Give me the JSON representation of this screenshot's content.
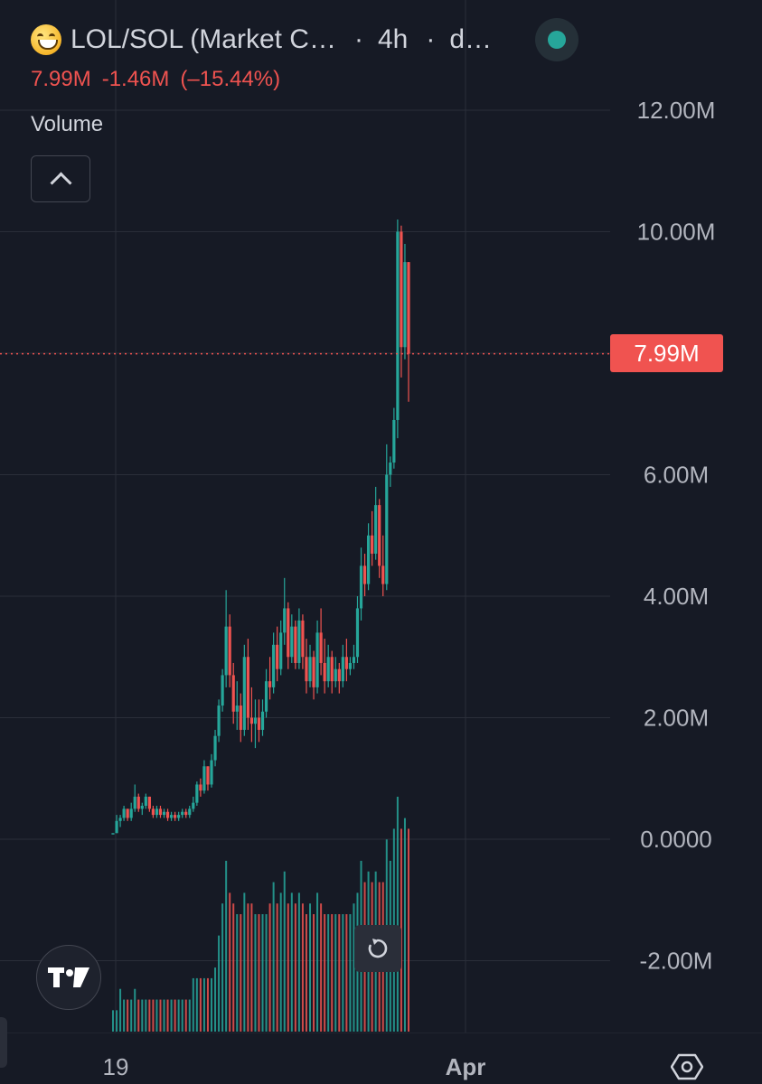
{
  "header": {
    "symbol_title": "LOL/SOL (Market C…",
    "interval": "4h",
    "source_abbrev": "d…",
    "icon": "grinning-face-emoji-icon",
    "status_color": "#26a69a"
  },
  "stats": {
    "last": "7.99M",
    "change": "-1.46M",
    "change_pct": "(–15.44%)",
    "color": "#ef5350"
  },
  "volume_label": "Volume",
  "price_tag": "7.99M",
  "time_axis": {
    "labels": [
      "19",
      "Apr"
    ]
  },
  "colors": {
    "up": "#26a69a",
    "down": "#ef5350",
    "background": "#161a25",
    "grid": "#2a2e39"
  },
  "chart_data": {
    "type": "candlestick",
    "y_axis_labels": [
      "12.00M",
      "10.00M",
      "6.00M",
      "4.00M",
      "2.00M",
      "0.0000",
      "-2.00M"
    ],
    "ylim": [
      -3.2,
      12.0
    ],
    "x_labels": [
      "19",
      "Apr"
    ],
    "last_price": 7.99,
    "candles": [
      [
        0.1,
        0.1,
        0.1,
        0.1
      ],
      [
        0.1,
        0.4,
        0.1,
        0.3
      ],
      [
        0.3,
        0.4,
        0.2,
        0.35
      ],
      [
        0.35,
        0.55,
        0.3,
        0.5
      ],
      [
        0.5,
        0.5,
        0.3,
        0.35
      ],
      [
        0.35,
        0.6,
        0.3,
        0.5
      ],
      [
        0.5,
        0.9,
        0.45,
        0.7
      ],
      [
        0.7,
        0.75,
        0.45,
        0.5
      ],
      [
        0.5,
        0.6,
        0.4,
        0.55
      ],
      [
        0.55,
        0.75,
        0.5,
        0.7
      ],
      [
        0.7,
        0.7,
        0.45,
        0.5
      ],
      [
        0.5,
        0.55,
        0.35,
        0.4
      ],
      [
        0.4,
        0.55,
        0.35,
        0.5
      ],
      [
        0.5,
        0.55,
        0.35,
        0.4
      ],
      [
        0.4,
        0.5,
        0.35,
        0.45
      ],
      [
        0.45,
        0.5,
        0.3,
        0.35
      ],
      [
        0.35,
        0.45,
        0.3,
        0.4
      ],
      [
        0.4,
        0.45,
        0.3,
        0.35
      ],
      [
        0.35,
        0.45,
        0.3,
        0.4
      ],
      [
        0.4,
        0.5,
        0.35,
        0.45
      ],
      [
        0.45,
        0.5,
        0.35,
        0.4
      ],
      [
        0.4,
        0.55,
        0.35,
        0.5
      ],
      [
        0.5,
        0.7,
        0.45,
        0.6
      ],
      [
        0.6,
        0.95,
        0.55,
        0.9
      ],
      [
        0.9,
        1.0,
        0.7,
        0.8
      ],
      [
        0.8,
        1.3,
        0.75,
        1.2
      ],
      [
        1.2,
        1.2,
        0.8,
        0.9
      ],
      [
        0.9,
        1.4,
        0.85,
        1.3
      ],
      [
        1.3,
        1.8,
        1.2,
        1.7
      ],
      [
        1.7,
        2.3,
        1.6,
        2.2
      ],
      [
        2.2,
        2.8,
        2.1,
        2.7
      ],
      [
        2.7,
        4.1,
        2.5,
        3.5
      ],
      [
        3.5,
        3.7,
        2.5,
        2.7
      ],
      [
        2.7,
        2.9,
        1.9,
        2.1
      ],
      [
        2.1,
        2.6,
        1.8,
        2.2
      ],
      [
        2.2,
        2.4,
        1.6,
        1.8
      ],
      [
        1.8,
        3.2,
        1.7,
        3.0
      ],
      [
        3.0,
        3.3,
        1.8,
        2.0
      ],
      [
        2.0,
        2.5,
        1.6,
        1.9
      ],
      [
        1.9,
        2.3,
        1.5,
        2.0
      ],
      [
        2.0,
        2.3,
        1.6,
        1.8
      ],
      [
        1.8,
        2.3,
        1.7,
        2.1
      ],
      [
        2.1,
        2.8,
        2.0,
        2.6
      ],
      [
        2.6,
        3.0,
        2.3,
        2.5
      ],
      [
        2.5,
        3.4,
        2.4,
        3.2
      ],
      [
        3.2,
        3.5,
        2.6,
        2.8
      ],
      [
        2.8,
        3.6,
        2.7,
        3.4
      ],
      [
        3.4,
        4.3,
        3.2,
        3.8
      ],
      [
        3.8,
        3.9,
        2.8,
        3.0
      ],
      [
        3.0,
        3.7,
        2.9,
        3.5
      ],
      [
        3.5,
        3.6,
        2.8,
        2.9
      ],
      [
        2.9,
        3.8,
        2.8,
        3.6
      ],
      [
        3.6,
        3.7,
        2.8,
        3.0
      ],
      [
        3.0,
        3.3,
        2.4,
        2.6
      ],
      [
        2.6,
        3.2,
        2.5,
        3.0
      ],
      [
        3.0,
        3.1,
        2.3,
        2.5
      ],
      [
        2.5,
        3.6,
        2.4,
        3.4
      ],
      [
        3.4,
        3.8,
        2.7,
        2.9
      ],
      [
        2.9,
        3.3,
        2.4,
        2.6
      ],
      [
        2.6,
        3.2,
        2.5,
        3.0
      ],
      [
        3.0,
        3.1,
        2.4,
        2.6
      ],
      [
        2.6,
        3.0,
        2.5,
        2.8
      ],
      [
        2.8,
        2.9,
        2.4,
        2.6
      ],
      [
        2.6,
        3.2,
        2.5,
        3.0
      ],
      [
        3.0,
        3.3,
        2.6,
        2.8
      ],
      [
        2.8,
        3.0,
        2.7,
        2.9
      ],
      [
        2.9,
        3.2,
        2.8,
        3.0
      ],
      [
        3.0,
        4.0,
        2.9,
        3.8
      ],
      [
        3.8,
        4.8,
        3.6,
        4.5
      ],
      [
        4.5,
        4.7,
        4.0,
        4.2
      ],
      [
        4.2,
        5.2,
        4.1,
        5.0
      ],
      [
        5.0,
        5.4,
        4.5,
        4.7
      ],
      [
        4.7,
        5.8,
        4.6,
        5.5
      ],
      [
        5.5,
        5.6,
        4.3,
        4.5
      ],
      [
        4.5,
        5.0,
        4.0,
        4.2
      ],
      [
        4.2,
        6.5,
        4.1,
        6.0
      ],
      [
        6.0,
        6.3,
        5.8,
        6.2
      ],
      [
        6.2,
        7.1,
        6.1,
        6.9
      ],
      [
        6.9,
        10.2,
        6.6,
        10.0
      ],
      [
        10.0,
        10.1,
        7.6,
        8.1
      ],
      [
        8.1,
        9.8,
        7.9,
        9.5
      ],
      [
        9.5,
        9.5,
        7.2,
        7.99
      ]
    ],
    "volumes": [
      0.2,
      0.2,
      0.4,
      0.3,
      0.3,
      0.3,
      0.4,
      0.3,
      0.3,
      0.3,
      0.3,
      0.3,
      0.3,
      0.3,
      0.3,
      0.3,
      0.3,
      0.3,
      0.3,
      0.3,
      0.3,
      0.3,
      0.5,
      0.5,
      0.5,
      0.5,
      0.5,
      0.5,
      0.6,
      0.9,
      1.2,
      1.6,
      1.3,
      1.2,
      1.1,
      1.1,
      1.3,
      1.2,
      1.2,
      1.1,
      1.1,
      1.1,
      1.1,
      1.2,
      1.4,
      1.2,
      1.3,
      1.5,
      1.2,
      1.3,
      1.2,
      1.3,
      1.2,
      1.1,
      1.2,
      1.1,
      1.3,
      1.2,
      1.1,
      1.1,
      1.1,
      1.1,
      1.1,
      1.1,
      1.1,
      1.1,
      1.2,
      1.3,
      1.6,
      1.4,
      1.5,
      1.4,
      1.5,
      1.4,
      1.4,
      1.8,
      1.6,
      1.9,
      2.2,
      1.9,
      2.0,
      1.9
    ]
  }
}
